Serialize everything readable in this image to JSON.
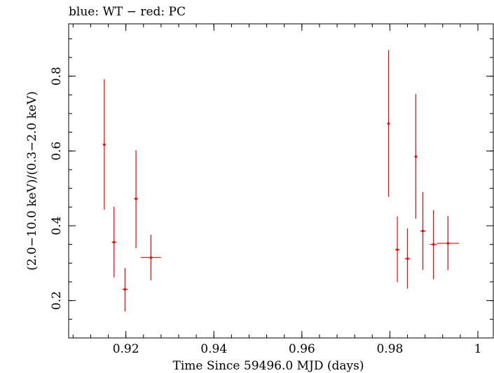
{
  "chart_data": {
    "type": "scatter",
    "title": "blue: WT − red: PC",
    "xlabel": "Time Since 59496.0 MJD (days)",
    "ylabel": "(2.0−10.0 keV)/(0.3−2.0 keV)",
    "xlim": [
      0.907,
      1.0035
    ],
    "ylim": [
      0.1,
      0.94
    ],
    "x_ticks": [
      {
        "value": 0.92,
        "label": "0.92"
      },
      {
        "value": 0.94,
        "label": "0.94"
      },
      {
        "value": 0.96,
        "label": "0.96"
      },
      {
        "value": 0.98,
        "label": "0.98"
      },
      {
        "value": 1.0,
        "label": "1"
      }
    ],
    "y_ticks": [
      {
        "value": 0.2,
        "label": "0.2"
      },
      {
        "value": 0.4,
        "label": "0.4"
      },
      {
        "value": 0.6,
        "label": "0.6"
      },
      {
        "value": 0.8,
        "label": "0.8"
      }
    ],
    "series": [
      {
        "color": "#ff0000",
        "points": [
          {
            "x": 0.9151,
            "xerr": 0.0003,
            "y": 0.617,
            "ylo": 0.443,
            "yhi": 0.792
          },
          {
            "x": 0.9173,
            "xerr": 0.0005,
            "y": 0.356,
            "ylo": 0.262,
            "yhi": 0.451
          },
          {
            "x": 0.9198,
            "xerr": 0.0006,
            "y": 0.23,
            "ylo": 0.171,
            "yhi": 0.287
          },
          {
            "x": 0.9223,
            "xerr": 0.0004,
            "y": 0.472,
            "ylo": 0.34,
            "yhi": 0.602
          },
          {
            "x": 0.9257,
            "xerr": 0.0023,
            "y": 0.315,
            "ylo": 0.254,
            "yhi": 0.376
          },
          {
            "x": 0.9797,
            "xerr": 0.0003,
            "y": 0.673,
            "ylo": 0.477,
            "yhi": 0.87
          },
          {
            "x": 0.9817,
            "xerr": 0.0005,
            "y": 0.336,
            "ylo": 0.249,
            "yhi": 0.425
          },
          {
            "x": 0.984,
            "xerr": 0.0006,
            "y": 0.312,
            "ylo": 0.232,
            "yhi": 0.393
          },
          {
            "x": 0.9859,
            "xerr": 0.0003,
            "y": 0.585,
            "ylo": 0.419,
            "yhi": 0.752
          },
          {
            "x": 0.9875,
            "xerr": 0.0006,
            "y": 0.386,
            "ylo": 0.282,
            "yhi": 0.49
          },
          {
            "x": 0.9899,
            "xerr": 0.0008,
            "y": 0.35,
            "ylo": 0.257,
            "yhi": 0.442
          },
          {
            "x": 0.9932,
            "xerr": 0.0025,
            "y": 0.353,
            "ylo": 0.281,
            "yhi": 0.426
          }
        ]
      }
    ],
    "grid": false
  }
}
